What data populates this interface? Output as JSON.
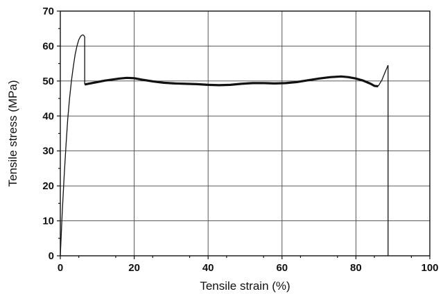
{
  "chart_data": {
    "type": "line",
    "title": "",
    "xlabel": "Tensile strain (%)",
    "ylabel": "Tensile stress (MPa)",
    "xlim": [
      0,
      100
    ],
    "ylim": [
      0,
      70
    ],
    "xticks": [
      "0",
      "20",
      "40",
      "60",
      "80",
      "100"
    ],
    "yticks": [
      "0",
      "10",
      "20",
      "30",
      "40",
      "50",
      "60",
      "70"
    ],
    "grid": true,
    "legend": "none",
    "series": [
      {
        "x": [
          0,
          0.5,
          1,
          1.5,
          2,
          2.5,
          3,
          3.5,
          4,
          4.5,
          5,
          5.5,
          6,
          6.3,
          6.6,
          6.6,
          7,
          8,
          10,
          12,
          14,
          16,
          18,
          20,
          22,
          25,
          28,
          31,
          34,
          37,
          40,
          43,
          46,
          49,
          52,
          55,
          58,
          61,
          64,
          67,
          70,
          73,
          76,
          78,
          80,
          82,
          84,
          85,
          86,
          87,
          88,
          88.7
        ],
        "y": [
          0,
          12,
          22,
          31,
          39,
          45,
          50,
          54,
          57.5,
          60,
          61.8,
          62.8,
          63.2,
          63.1,
          62.6,
          49,
          49.1,
          49.3,
          49.7,
          50.1,
          50.4,
          50.7,
          50.9,
          50.8,
          50.4,
          49.9,
          49.5,
          49.3,
          49.2,
          49.1,
          48.9,
          48.8,
          48.9,
          49.2,
          49.4,
          49.4,
          49.3,
          49.4,
          49.7,
          50.2,
          50.7,
          51.1,
          51.3,
          51.1,
          50.7,
          50.1,
          49.2,
          48.6,
          48.5,
          50.2,
          52.8,
          54.5
        ]
      }
    ]
  }
}
